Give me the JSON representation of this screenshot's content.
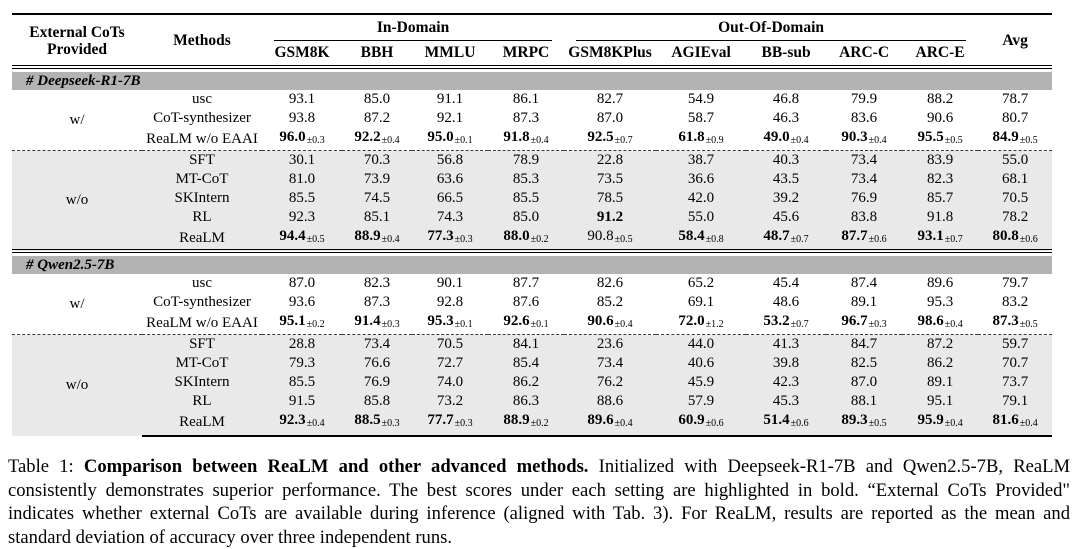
{
  "colors": {
    "band_bg": "#b3b3b3",
    "shade_bg": "#e9e9e9",
    "text": "#000000"
  },
  "table": {
    "header": {
      "provided_line1": "External CoTs",
      "provided_line2": "Provided",
      "methods": "Methods",
      "in_domain": "In-Domain",
      "out_of_domain": "Out-Of-Domain",
      "avg": "Avg",
      "in_cols": [
        "GSM8K",
        "BBH",
        "MMLU",
        "MRPC"
      ],
      "out_cols": [
        "GSM8KPlus",
        "AGIEval",
        "BB-sub",
        "ARC-C",
        "ARC-E"
      ]
    },
    "sections": [
      {
        "name": "# Deepseek-R1-7B",
        "groups": [
          {
            "provided": "w/",
            "shaded": false,
            "rows": [
              {
                "method": "usc",
                "in": [
                  {
                    "v": "93.1"
                  },
                  {
                    "v": "85.0"
                  },
                  {
                    "v": "91.1"
                  },
                  {
                    "v": "86.1"
                  }
                ],
                "out": [
                  {
                    "v": "82.7"
                  },
                  {
                    "v": "54.9"
                  },
                  {
                    "v": "46.8"
                  },
                  {
                    "v": "79.9"
                  },
                  {
                    "v": "88.2"
                  }
                ],
                "avg": {
                  "v": "78.7"
                }
              },
              {
                "method": "CoT-synthesizer",
                "in": [
                  {
                    "v": "93.8"
                  },
                  {
                    "v": "87.2"
                  },
                  {
                    "v": "92.1"
                  },
                  {
                    "v": "87.3"
                  }
                ],
                "out": [
                  {
                    "v": "87.0"
                  },
                  {
                    "v": "58.7"
                  },
                  {
                    "v": "46.3"
                  },
                  {
                    "v": "83.6"
                  },
                  {
                    "v": "90.6"
                  }
                ],
                "avg": {
                  "v": "80.7"
                }
              },
              {
                "method": "ReaLM w/o EAAI",
                "in": [
                  {
                    "v": "96.0",
                    "sd": "±0.3",
                    "b": true
                  },
                  {
                    "v": "92.2",
                    "sd": "±0.4",
                    "b": true
                  },
                  {
                    "v": "95.0",
                    "sd": "±0.1",
                    "b": true
                  },
                  {
                    "v": "91.8",
                    "sd": "±0.4",
                    "b": true
                  }
                ],
                "out": [
                  {
                    "v": "92.5",
                    "sd": "±0.7",
                    "b": true
                  },
                  {
                    "v": "61.8",
                    "sd": "±0.9",
                    "b": true
                  },
                  {
                    "v": "49.0",
                    "sd": "±0.4",
                    "b": true
                  },
                  {
                    "v": "90.3",
                    "sd": "±0.4",
                    "b": true
                  },
                  {
                    "v": "95.5",
                    "sd": "±0.5",
                    "b": true
                  }
                ],
                "avg": {
                  "v": "84.9",
                  "sd": "±0.5",
                  "b": true
                }
              }
            ]
          },
          {
            "provided": "w/o",
            "shaded": true,
            "rows": [
              {
                "method": "SFT",
                "in": [
                  {
                    "v": "30.1"
                  },
                  {
                    "v": "70.3"
                  },
                  {
                    "v": "56.8"
                  },
                  {
                    "v": "78.9"
                  }
                ],
                "out": [
                  {
                    "v": "22.8"
                  },
                  {
                    "v": "38.7"
                  },
                  {
                    "v": "40.3"
                  },
                  {
                    "v": "73.4"
                  },
                  {
                    "v": "83.9"
                  }
                ],
                "avg": {
                  "v": "55.0"
                }
              },
              {
                "method": "MT-CoT",
                "in": [
                  {
                    "v": "81.0"
                  },
                  {
                    "v": "73.9"
                  },
                  {
                    "v": "63.6"
                  },
                  {
                    "v": "85.3"
                  }
                ],
                "out": [
                  {
                    "v": "73.5"
                  },
                  {
                    "v": "36.6"
                  },
                  {
                    "v": "43.5"
                  },
                  {
                    "v": "73.4"
                  },
                  {
                    "v": "82.3"
                  }
                ],
                "avg": {
                  "v": "68.1"
                }
              },
              {
                "method": "SKIntern",
                "in": [
                  {
                    "v": "85.5"
                  },
                  {
                    "v": "74.5"
                  },
                  {
                    "v": "66.5"
                  },
                  {
                    "v": "85.5"
                  }
                ],
                "out": [
                  {
                    "v": "78.5"
                  },
                  {
                    "v": "42.0"
                  },
                  {
                    "v": "39.2"
                  },
                  {
                    "v": "76.9"
                  },
                  {
                    "v": "85.7"
                  }
                ],
                "avg": {
                  "v": "70.5"
                }
              },
              {
                "method": "RL",
                "in": [
                  {
                    "v": "92.3"
                  },
                  {
                    "v": "85.1"
                  },
                  {
                    "v": "74.3"
                  },
                  {
                    "v": "85.0"
                  }
                ],
                "out": [
                  {
                    "v": "91.2",
                    "b": true
                  },
                  {
                    "v": "55.0"
                  },
                  {
                    "v": "45.6"
                  },
                  {
                    "v": "83.8"
                  },
                  {
                    "v": "91.8"
                  }
                ],
                "avg": {
                  "v": "78.2"
                }
              },
              {
                "method": "ReaLM",
                "in": [
                  {
                    "v": "94.4",
                    "sd": "±0.5",
                    "b": true
                  },
                  {
                    "v": "88.9",
                    "sd": "±0.4",
                    "b": true
                  },
                  {
                    "v": "77.3",
                    "sd": "±0.3",
                    "b": true
                  },
                  {
                    "v": "88.0",
                    "sd": "±0.2",
                    "b": true
                  }
                ],
                "out": [
                  {
                    "v": "90.8",
                    "sd": "±0.5"
                  },
                  {
                    "v": "58.4",
                    "sd": "±0.8",
                    "b": true
                  },
                  {
                    "v": "48.7",
                    "sd": "±0.7",
                    "b": true
                  },
                  {
                    "v": "87.7",
                    "sd": "±0.6",
                    "b": true
                  },
                  {
                    "v": "93.1",
                    "sd": "±0.7",
                    "b": true
                  }
                ],
                "avg": {
                  "v": "80.8",
                  "sd": "±0.6",
                  "b": true
                }
              }
            ]
          }
        ]
      },
      {
        "name": "# Qwen2.5-7B",
        "groups": [
          {
            "provided": "w/",
            "shaded": false,
            "rows": [
              {
                "method": "usc",
                "in": [
                  {
                    "v": "87.0"
                  },
                  {
                    "v": "82.3"
                  },
                  {
                    "v": "90.1"
                  },
                  {
                    "v": "87.7"
                  }
                ],
                "out": [
                  {
                    "v": "82.6"
                  },
                  {
                    "v": "65.2"
                  },
                  {
                    "v": "45.4"
                  },
                  {
                    "v": "87.4"
                  },
                  {
                    "v": "89.6"
                  }
                ],
                "avg": {
                  "v": "79.7"
                }
              },
              {
                "method": "CoT-synthesizer",
                "in": [
                  {
                    "v": "93.6"
                  },
                  {
                    "v": "87.3"
                  },
                  {
                    "v": "92.8"
                  },
                  {
                    "v": "87.6"
                  }
                ],
                "out": [
                  {
                    "v": "85.2"
                  },
                  {
                    "v": "69.1"
                  },
                  {
                    "v": "48.6"
                  },
                  {
                    "v": "89.1"
                  },
                  {
                    "v": "95.3"
                  }
                ],
                "avg": {
                  "v": "83.2"
                }
              },
              {
                "method": "ReaLM w/o EAAI",
                "in": [
                  {
                    "v": "95.1",
                    "sd": "±0.2",
                    "b": true
                  },
                  {
                    "v": "91.4",
                    "sd": "±0.3",
                    "b": true
                  },
                  {
                    "v": "95.3",
                    "sd": "±0.1",
                    "b": true
                  },
                  {
                    "v": "92.6",
                    "sd": "±0.1",
                    "b": true
                  }
                ],
                "out": [
                  {
                    "v": "90.6",
                    "sd": "±0.4",
                    "b": true
                  },
                  {
                    "v": "72.0",
                    "sd": "±1.2",
                    "b": true
                  },
                  {
                    "v": "53.2",
                    "sd": "±0.7",
                    "b": true
                  },
                  {
                    "v": "96.7",
                    "sd": "±0.3",
                    "b": true
                  },
                  {
                    "v": "98.6",
                    "sd": "±0.4",
                    "b": true
                  }
                ],
                "avg": {
                  "v": "87.3",
                  "sd": "±0.5",
                  "b": true
                }
              }
            ]
          },
          {
            "provided": "w/o",
            "shaded": true,
            "rows": [
              {
                "method": "SFT",
                "in": [
                  {
                    "v": "28.8"
                  },
                  {
                    "v": "73.4"
                  },
                  {
                    "v": "70.5"
                  },
                  {
                    "v": "84.1"
                  }
                ],
                "out": [
                  {
                    "v": "23.6"
                  },
                  {
                    "v": "44.0"
                  },
                  {
                    "v": "41.3"
                  },
                  {
                    "v": "84.7"
                  },
                  {
                    "v": "87.2"
                  }
                ],
                "avg": {
                  "v": "59.7"
                }
              },
              {
                "method": "MT-CoT",
                "in": [
                  {
                    "v": "79.3"
                  },
                  {
                    "v": "76.6"
                  },
                  {
                    "v": "72.7"
                  },
                  {
                    "v": "85.4"
                  }
                ],
                "out": [
                  {
                    "v": "73.4"
                  },
                  {
                    "v": "40.6"
                  },
                  {
                    "v": "39.8"
                  },
                  {
                    "v": "82.5"
                  },
                  {
                    "v": "86.2"
                  }
                ],
                "avg": {
                  "v": "70.7"
                }
              },
              {
                "method": "SKIntern",
                "in": [
                  {
                    "v": "85.5"
                  },
                  {
                    "v": "76.9"
                  },
                  {
                    "v": "74.0"
                  },
                  {
                    "v": "86.2"
                  }
                ],
                "out": [
                  {
                    "v": "76.2"
                  },
                  {
                    "v": "45.9"
                  },
                  {
                    "v": "42.3"
                  },
                  {
                    "v": "87.0"
                  },
                  {
                    "v": "89.1"
                  }
                ],
                "avg": {
                  "v": "73.7"
                }
              },
              {
                "method": "RL",
                "in": [
                  {
                    "v": "91.5"
                  },
                  {
                    "v": "85.8"
                  },
                  {
                    "v": "73.2"
                  },
                  {
                    "v": "86.3"
                  }
                ],
                "out": [
                  {
                    "v": "88.6"
                  },
                  {
                    "v": "57.9"
                  },
                  {
                    "v": "45.3"
                  },
                  {
                    "v": "88.1"
                  },
                  {
                    "v": "95.1"
                  }
                ],
                "avg": {
                  "v": "79.1"
                }
              },
              {
                "method": "ReaLM",
                "in": [
                  {
                    "v": "92.3",
                    "sd": "±0.4",
                    "b": true
                  },
                  {
                    "v": "88.5",
                    "sd": "±0.3",
                    "b": true
                  },
                  {
                    "v": "77.7",
                    "sd": "±0.3",
                    "b": true
                  },
                  {
                    "v": "88.9",
                    "sd": "±0.2",
                    "b": true
                  }
                ],
                "out": [
                  {
                    "v": "89.6",
                    "sd": "±0.4",
                    "b": true
                  },
                  {
                    "v": "60.9",
                    "sd": "±0.6",
                    "b": true
                  },
                  {
                    "v": "51.4",
                    "sd": "±0.6",
                    "b": true
                  },
                  {
                    "v": "89.3",
                    "sd": "±0.5",
                    "b": true
                  },
                  {
                    "v": "95.9",
                    "sd": "±0.4",
                    "b": true
                  }
                ],
                "avg": {
                  "v": "81.6",
                  "sd": "±0.4",
                  "b": true
                }
              }
            ]
          }
        ]
      }
    ]
  },
  "caption": {
    "prefix": "Table 1: ",
    "bold": "Comparison between ReaLM and other advanced methods.",
    "rest": " Initialized with Deepseek-R1-7B and Qwen2.5-7B, ReaLM consistently demonstrates superior performance. The best scores under each setting are highlighted in bold. “External CoTs Provided\" indicates whether external CoTs are available during inference (aligned with Tab. 3). For ReaLM, results are reported as the mean and standard deviation of accuracy over three independent runs."
  }
}
